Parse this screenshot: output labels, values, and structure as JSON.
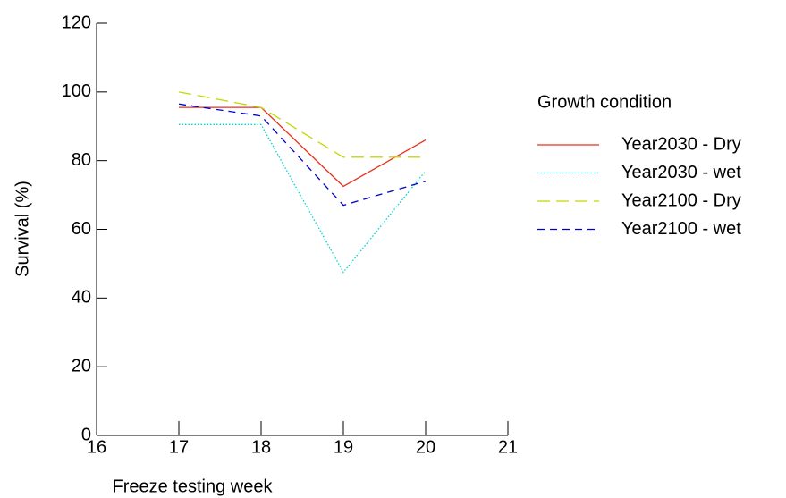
{
  "chart_data": {
    "type": "line",
    "x_label": "Freeze testing week",
    "y_label": "Survival (%)",
    "x": [
      17,
      18,
      19,
      20
    ],
    "xlim": [
      16,
      21
    ],
    "xticks": [
      16,
      17,
      18,
      19,
      20,
      21
    ],
    "ylim": [
      0,
      120
    ],
    "yticks": [
      0,
      20,
      40,
      60,
      80,
      100,
      120
    ],
    "legend_title": "Growth condition",
    "legend_position": "right",
    "series": [
      {
        "name": "Year2030 - Dry",
        "color": "#e8301c",
        "dash": "solid",
        "values": [
          95.5,
          95.5,
          72.5,
          86
        ]
      },
      {
        "name": "Year2030 - wet",
        "color": "#00d4d4",
        "dash": "dotted",
        "values": [
          90.5,
          90.5,
          47.5,
          77
        ]
      },
      {
        "name": "Year2100 - Dry",
        "color": "#c4d800",
        "dash": "long-dash",
        "values": [
          100,
          95.5,
          81,
          81
        ]
      },
      {
        "name": "Year2100 - wet",
        "color": "#0000c8",
        "dash": "dash",
        "values": [
          96.5,
          93,
          67,
          74
        ]
      }
    ]
  }
}
